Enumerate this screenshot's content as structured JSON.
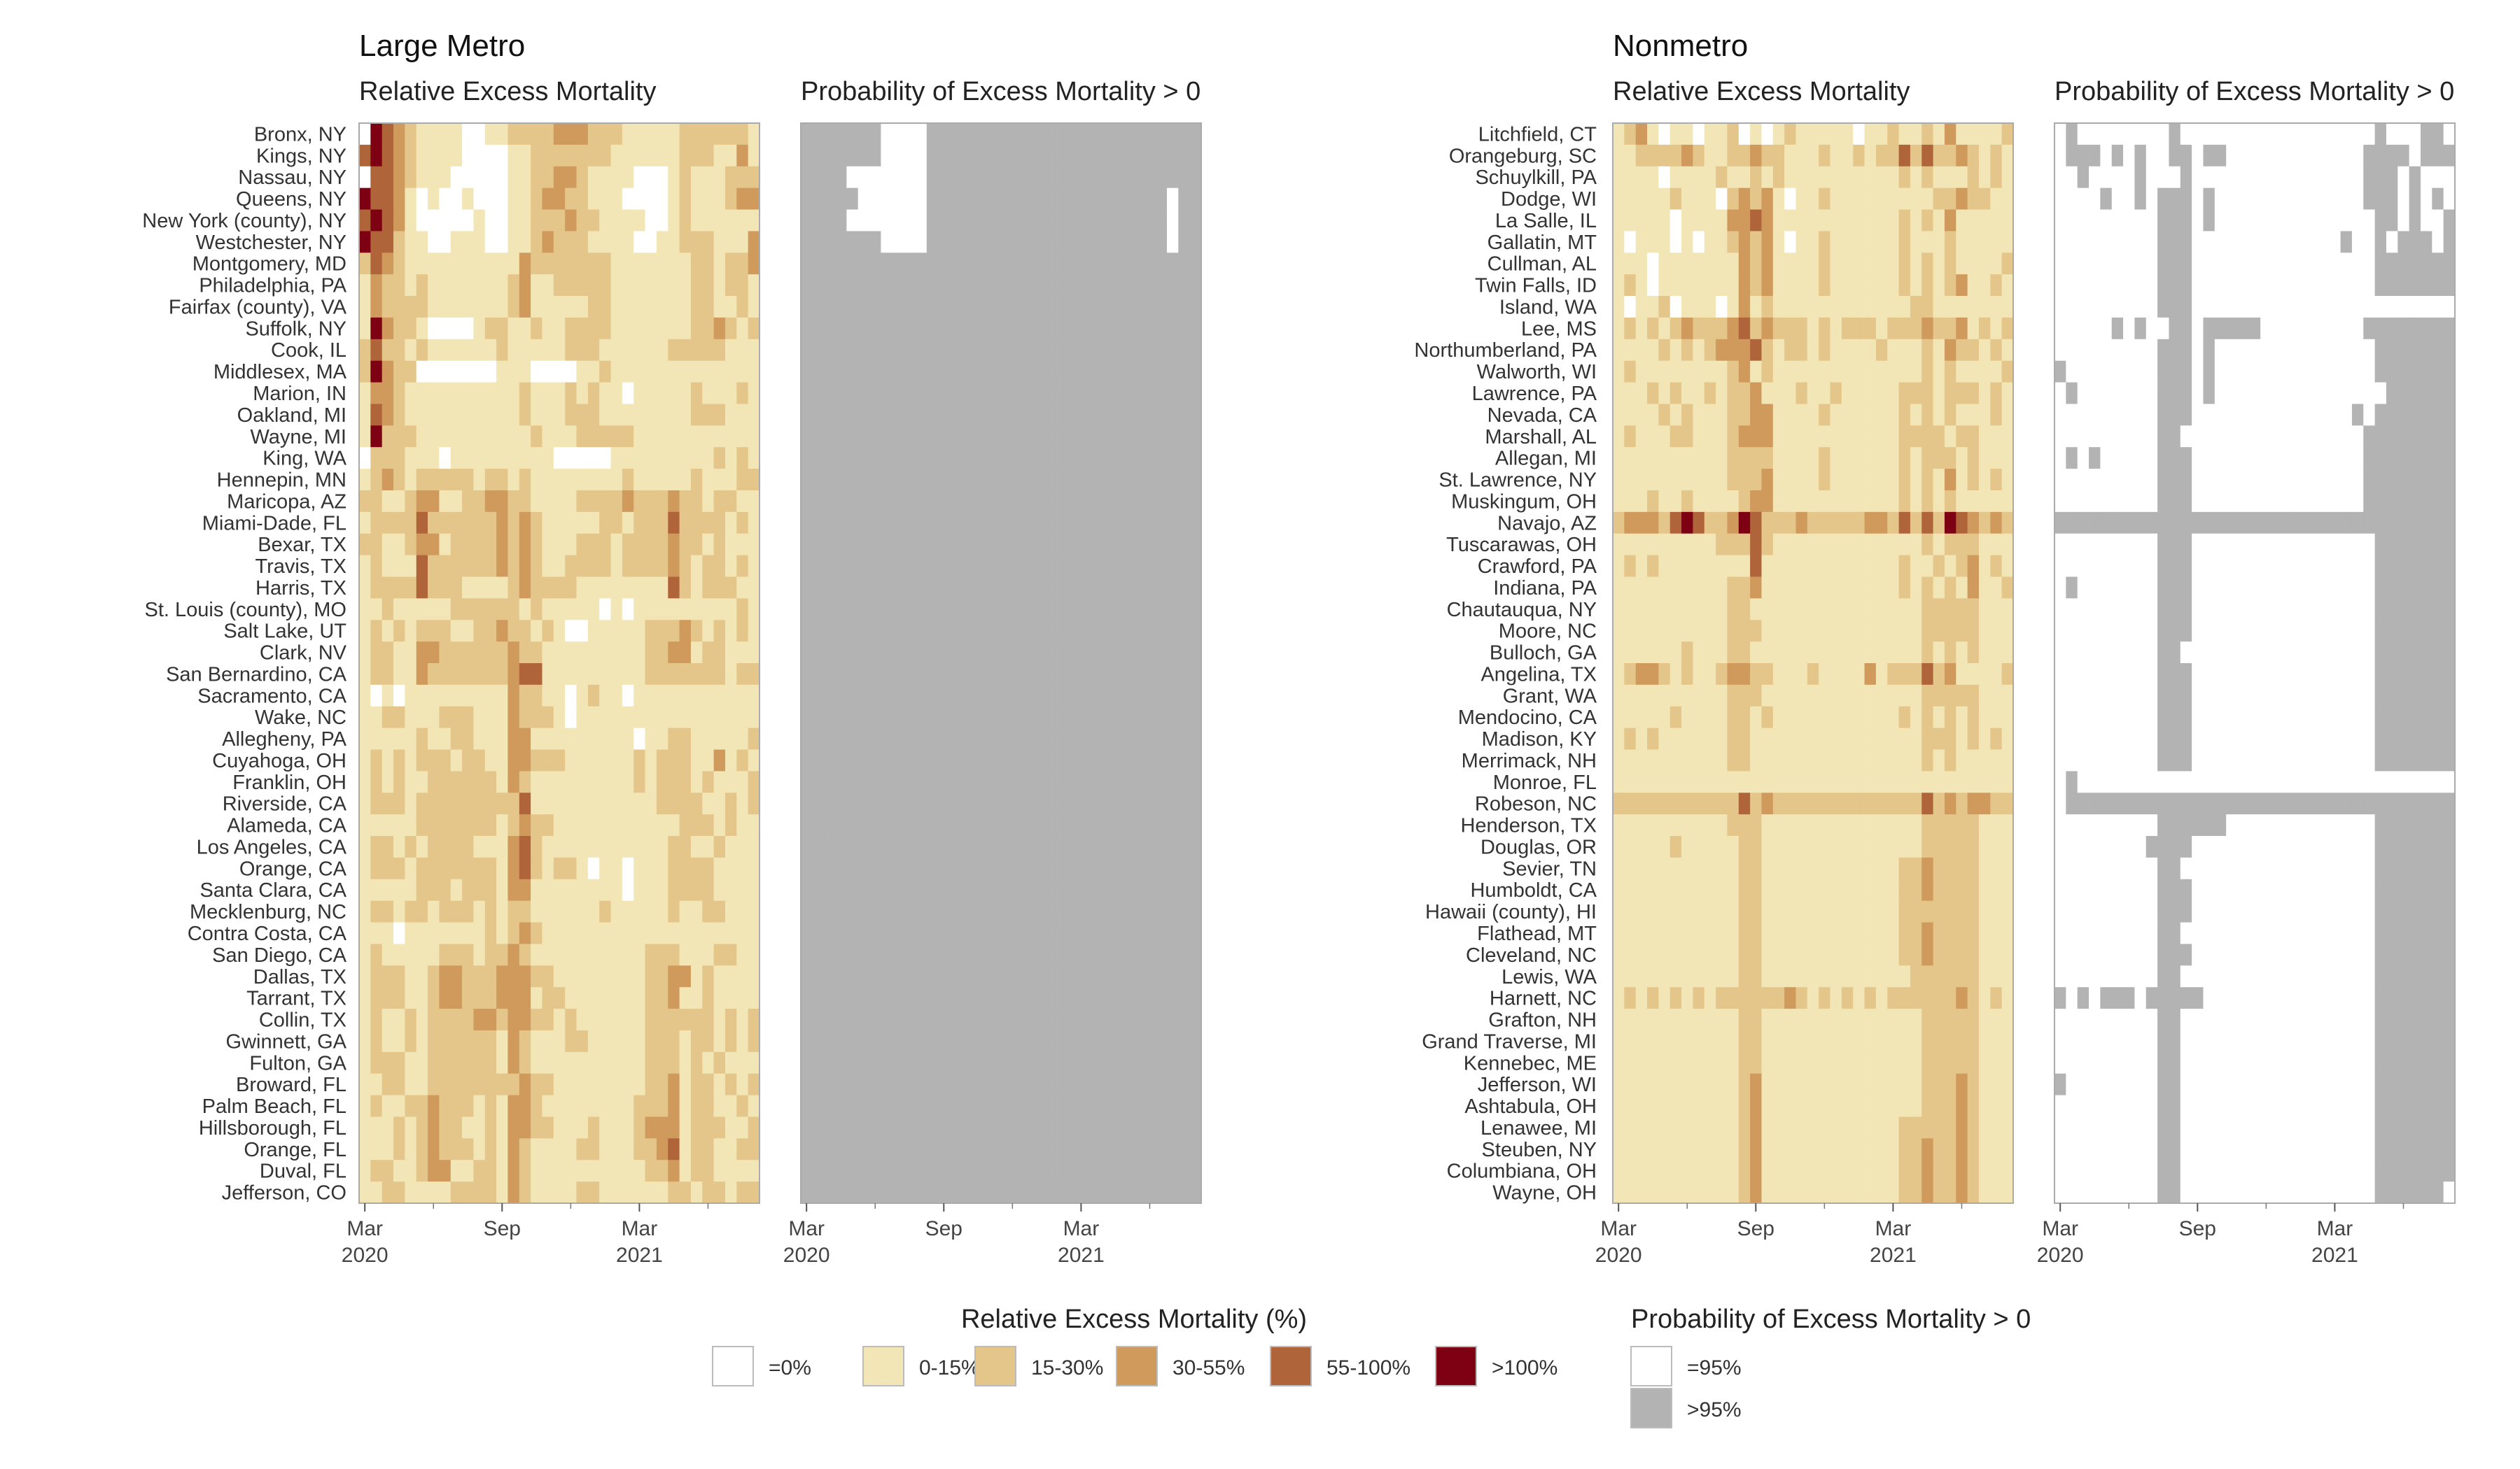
{
  "chart_data": {
    "type": "heatmap",
    "groups": [
      {
        "title": "Large Metro",
        "panel_titles": [
          "Relative Excess Mortality",
          "Probability of Excess Mortality > 0"
        ],
        "rows": [
          "Bronx, NY",
          "Kings, NY",
          "Nassau, NY",
          "Queens, NY",
          "New York (county), NY",
          "Westchester, NY",
          "Montgomery, MD",
          "Philadelphia, PA",
          "Fairfax (county), VA",
          "Suffolk, NY",
          "Cook, IL",
          "Middlesex, MA",
          "Marion, IN",
          "Oakland, MI",
          "Wayne, MI",
          "King, WA",
          "Hennepin, MN",
          "Maricopa, AZ",
          "Miami-Dade, FL",
          "Bexar, TX",
          "Travis, TX",
          "Harris, TX",
          "St. Louis (county), MO",
          "Salt Lake, UT",
          "Clark, NV",
          "San Bernardino, CA",
          "Sacramento, CA",
          "Wake, NC",
          "Allegheny, PA",
          "Cuyahoga, OH",
          "Franklin, OH",
          "Riverside, CA",
          "Alameda, CA",
          "Los Angeles, CA",
          "Orange, CA",
          "Santa Clara, CA",
          "Mecklenburg, NC",
          "Contra Costa, CA",
          "San Diego, CA",
          "Dallas, TX",
          "Tarrant, TX",
          "Collin, TX",
          "Gwinnett, GA",
          "Fulton, GA",
          "Broward, FL",
          "Palm Beach, FL",
          "Hillsborough, FL",
          "Orange, FL",
          "Duval, FL",
          "Jefferson, CO"
        ],
        "excess_category_by_row": [
          "05432111100112222333222111112222221",
          "45432111100001122222221111112221131",
          "04432111000001122332111100012111222",
          "54431010010001123322111000012111233",
          "45431000001001122232211110012111111",
          "54421100111001123222111100112221113",
          "24321111111111322222221111111221223",
          "13221211111112311222221111111221221",
          "13222211111112311111221111111221121",
          "15322100001221121122221111111223212",
          "24221211111121111122211111122222111",
          "25322000000011100001121111111111111",
          "13321111111111211121211011111211121",
          "14321111111111211122211111111222111",
          "15222111111111121112222211111111111",
          "02221110111111111000001111111112121",
          "12321222221221211111111211111211122",
          "22112331122332211112222322232212211",
          "12222422222232321111122122242222121",
          "22112331222232321112221222232212111",
          "12111422222232321122221222232122121",
          "12222422211112322221111111142122211",
          "11211111222222121111101011111111121",
          "12121222112232212100111112223212121",
          "12211332222223221111111112233122111",
          "12211322222223441111111112222222122",
          "10101111111113221101211011111111111",
          "11221112221113222101111111111111111",
          "11111211221113311111111101122111112",
          "12121222122113322211111121222113121",
          "12121122222213211111111121222121112",
          "12221222222222411111111111222211212",
          "11111222222212322111111111112221211",
          "12212122221113421111111111122112111",
          "12221222222213421221011011122221111",
          "11111222122213311111111011122221111",
          "12212212221212211111121111121122111",
          "11101111111212321111111111111111111",
          "12111112221223211111111112221112211",
          "12221123322233322111111112233121111",
          "12221123322233312211111112231121111",
          "12112122223323322121111112222221212",
          "12112122222213211122111112221221212",
          "12221122222213211111111112221212111",
          "11221122222222322111111112231221212",
          "12112232221213321111111122231221121",
          "11121232211213322111211123331222112",
          "11121232221213211112211122341221122",
          "12211233112213211111111112231221111",
          "11221111222213211112211111122122122"
        ],
        "significant_gt95_by_row": [
          "11111110000111111111111111111111111",
          "11111110000111111111111111111111111",
          "11110000000111111111111111111111111",
          "11111000000111111111111111111111011",
          "11110000000111111111111111111111011",
          "11111110000111111111111111111111011",
          "11111111111111111111111111111111111",
          "11111111111111111111111111111111111",
          "11111111111111111111111111111111111",
          "11111111111111111111111111111111111",
          "11111111111111111111111111111111111",
          "11111111111111111111111111111111111",
          "11111111111111111111111111111111111",
          "11111111111111111111111111111111111",
          "11111111111111111111111111111111111",
          "11111111111111111111111111111111111",
          "11111111111111111111111111111111111",
          "11111111111111111111111111111111111",
          "11111111111111111111111111111111111",
          "11111111111111111111111111111111111",
          "11111111111111111111111111111111111",
          "11111111111111111111111111111111111",
          "11111111111111111111111111111111111",
          "11111111111111111111111111111111111",
          "11111111111111111111111111111111111",
          "11111111111111111111111111111111111",
          "11111111111111111111111111111111111",
          "11111111111111111111111111111111111",
          "11111111111111111111111111111111111",
          "11111111111111111111111111111111111",
          "11111111111111111111111111111111111",
          "11111111111111111111111111111111111",
          "11111111111111111111111111111111111",
          "11111111111111111111111111111111111",
          "11111111111111111111111111111111111",
          "11111111111111111111111111111111111",
          "11111111111111111111111111111111111",
          "11111111111111111111111111111111111",
          "11111111111111111111111111111111111",
          "11111111111111111111111111111111111",
          "11111111111111111111111111111111111",
          "11111111111111111111111111111111111",
          "11111111111111111111111111111111111",
          "11111111111111111111111111111111111",
          "11111111111111111111111111111111111",
          "11111111111111111111111111111111111",
          "11111111111111111111111111111111111",
          "11111111111111111111111111111111111",
          "11111111111111111111111111111111111",
          "11111111111111111111111111111111111"
        ]
      },
      {
        "title": "Nonmetro",
        "panel_titles": [
          "Relative Excess Mortality",
          "Probability of Excess Mortality > 0"
        ],
        "rows": [
          "Litchfield, CT",
          "Orangeburg, SC",
          "Schuylkill, PA",
          "Dodge, WI",
          "La Salle, IL",
          "Gallatin, MT",
          "Cullman, AL",
          "Twin Falls, ID",
          "Island, WA",
          "Lee, MS",
          "Northumberland, PA",
          "Walworth, WI",
          "Lawrence, PA",
          "Nevada, CA",
          "Marshall, AL",
          "Allegan, MI",
          "St. Lawrence, NY",
          "Muskingum, OH",
          "Navajo, AZ",
          "Tuscarawas, OH",
          "Crawford, PA",
          "Indiana, PA",
          "Chautauqua, NY",
          "Moore, NC",
          "Bulloch, GA",
          "Angelina, TX",
          "Grant, WA",
          "Mendocino, CA",
          "Madison, KY",
          "Merrimack, NH",
          "Monroe, FL",
          "Robeson, NC",
          "Henderson, TX",
          "Douglas, OR",
          "Sevier, TN",
          "Humboldt, CA",
          "Hawaii (county), HI",
          "Flathead, MT",
          "Cleveland, NC",
          "Lewis, WA",
          "Harnett, NC",
          "Grafton, NH",
          "Grand Traverse, MI",
          "Kennebec, ME",
          "Jefferson, WI",
          "Ashtabula, OH",
          "Lenawee, MI",
          "Steuben, NY",
          "Columbiana, OH",
          "Wayne, OH"
        ],
        "excess_category_by_row": [
          "12310110112010121111101121121311112",
          "11222232112232211121121224242232121",
          "11110111121121211111111112121112121",
          "11111211102323101121111111112232211",
          "11111011113343111111111112121311111",
          "10111010112323101121111112111211111",
          "11101111111323111121111112121211112",
          "12101111111323111121111112121231121",
          "10112011101312111111111111221111111",
          "12121232223423222121222122232231212",
          "11112121233342122121111211121322121",
          "12111111112312111111111111121211112",
          "11121211212231112112111112221222121",
          "11112121112233111121111112121211121",
          "12111221112333111111111112222122111",
          "11111111112222111121111112122212111",
          "11111111112223111121111112121312121",
          "11121121111233111111111112121211111",
          "23332454223542223222223324242543232",
          "11111111122242111111111111121222111",
          "12121111111141111111111112112123121",
          "11111111112231111111111112121213112",
          "11111111112211111111111111122222111",
          "11111111112221111111111111122222111",
          "11111121112211111111111111121212111",
          "12332121123322111211113122242311112",
          "11111111112221111111111111122222111",
          "11111211112212111111111112121212111",
          "12121111112211111111111111122212121",
          "11111111112211111111111111121211111",
          "11111111111111111111111111111111111",
          "22222222222423222222222222242323322",
          "11111111112221111111111111122222111",
          "11111211111221111111111111122222111",
          "11111111111221111111111112232222111",
          "11111111111221111111111112232222111",
          "11111111111221111111111112222222111",
          "11111111111221111111111112232222111",
          "11111111111221111111111112232222111",
          "11111111111221111111111111222222111",
          "12121212122222232121212122222232121",
          "11111111111221111111111111122222111",
          "11111111111221111111111111122222111",
          "11111111111221111111111111122222111",
          "11111111111231111111111111122232111",
          "11111111111231111111111111122232111",
          "11111111111231111111111112222232111",
          "11111111111231111111111112232232111",
          "11111111111231111111111112232232111",
          "11111111111231111111111112232232111"
        ],
        "significant_gt95_by_row": [
          "01000000001000000000000000001000110",
          "01110101001101100000000000011110111",
          "00100001000100000000000000011101000",
          "00001001011101000000000000011101010",
          "00000000011101000000000000001101001",
          "00000000011100000000000001001011101",
          "00000000011100000000000000001111111",
          "00000000011100000000000000001111111",
          "00000000011100000000000000000000000",
          "00000101001101111100000000011111111",
          "00000000011101000000000000001111111",
          "10000000011101000000000000001111111",
          "01000000011101000000000000000111111",
          "00000000011100000000000000101111111",
          "00000000011000000000000000011111111",
          "01010000011100000000000000011111111",
          "00000000011100000000000000011111111",
          "00000000011100000000000000011111111",
          "11111111111111111111111111111111111",
          "00000000011100000000000000001111111",
          "00000000011100000000000000001111111",
          "01000000011100000000000000001111111",
          "00000000011100000000000000001111111",
          "00000000011100000000000000001111111",
          "00000000011000000000000000001111111",
          "00000000011100000000000000001111111",
          "00000000011100000000000000001111111",
          "00000000011100000000000000001111111",
          "00000000011100000000000000001111111",
          "00000000011100000000000000001111111",
          "01000000000000000000000000000000000",
          "01111111111111111111111111111111111",
          "00000000011111100000000000001111111",
          "00000000111100000000000000001111111",
          "00000000011000000000000000001111111",
          "00000000011100000000000000001111111",
          "00000000011100000000000000001111111",
          "00000000011000000000000000001111111",
          "00000000011100000000000000001111111",
          "00000000011000000000000000001111111",
          "10101110111110000000000000001111111",
          "00000000011000000000000000001111111",
          "00000000011000000000000000001111111",
          "00000000011000000000000000001111111",
          "10000000011000000000000000001111111",
          "00000000011000000000000000001111111",
          "00000000011000000000000000001111111",
          "00000000011000000000000000001111111",
          "00000000011000000000000000001111111",
          "00000000011000000000000000001111110"
        ]
      }
    ],
    "x_tick_labels": [
      "Mar\n2020",
      "Sep",
      "Mar\n2021",
      "Sep"
    ],
    "legend_excess": {
      "title": "Relative Excess Mortality (%)",
      "items": [
        {
          "label": "=0%",
          "color": "#ffffff"
        },
        {
          "label": "0-15%",
          "color": "#f3e6b6"
        },
        {
          "label": "15-30%",
          "color": "#e5c68a"
        },
        {
          "label": "30-55%",
          "color": "#cf9a5c"
        },
        {
          "label": "55-100%",
          "color": "#b0643a"
        },
        {
          "label": ">100%",
          "color": "#7d0013"
        }
      ]
    },
    "legend_probability": {
      "title": "Probability of Excess Mortality > 0",
      "items": [
        {
          "label": "=95%",
          "color": "#ffffff"
        },
        {
          "label": ">95%",
          "color": "#b3b3b3"
        }
      ]
    }
  }
}
